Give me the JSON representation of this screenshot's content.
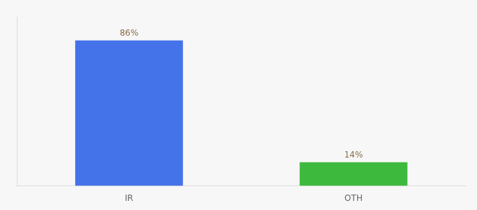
{
  "chart_data": {
    "type": "bar",
    "categories": [
      "IR",
      "OTH"
    ],
    "values": [
      86,
      14
    ],
    "value_labels": [
      "86%",
      "14%"
    ],
    "colors": [
      "#4472e8",
      "#3dba3d"
    ],
    "ylim": [
      0,
      100
    ],
    "grid": false,
    "data_labels": true,
    "tick_labels": "x"
  }
}
